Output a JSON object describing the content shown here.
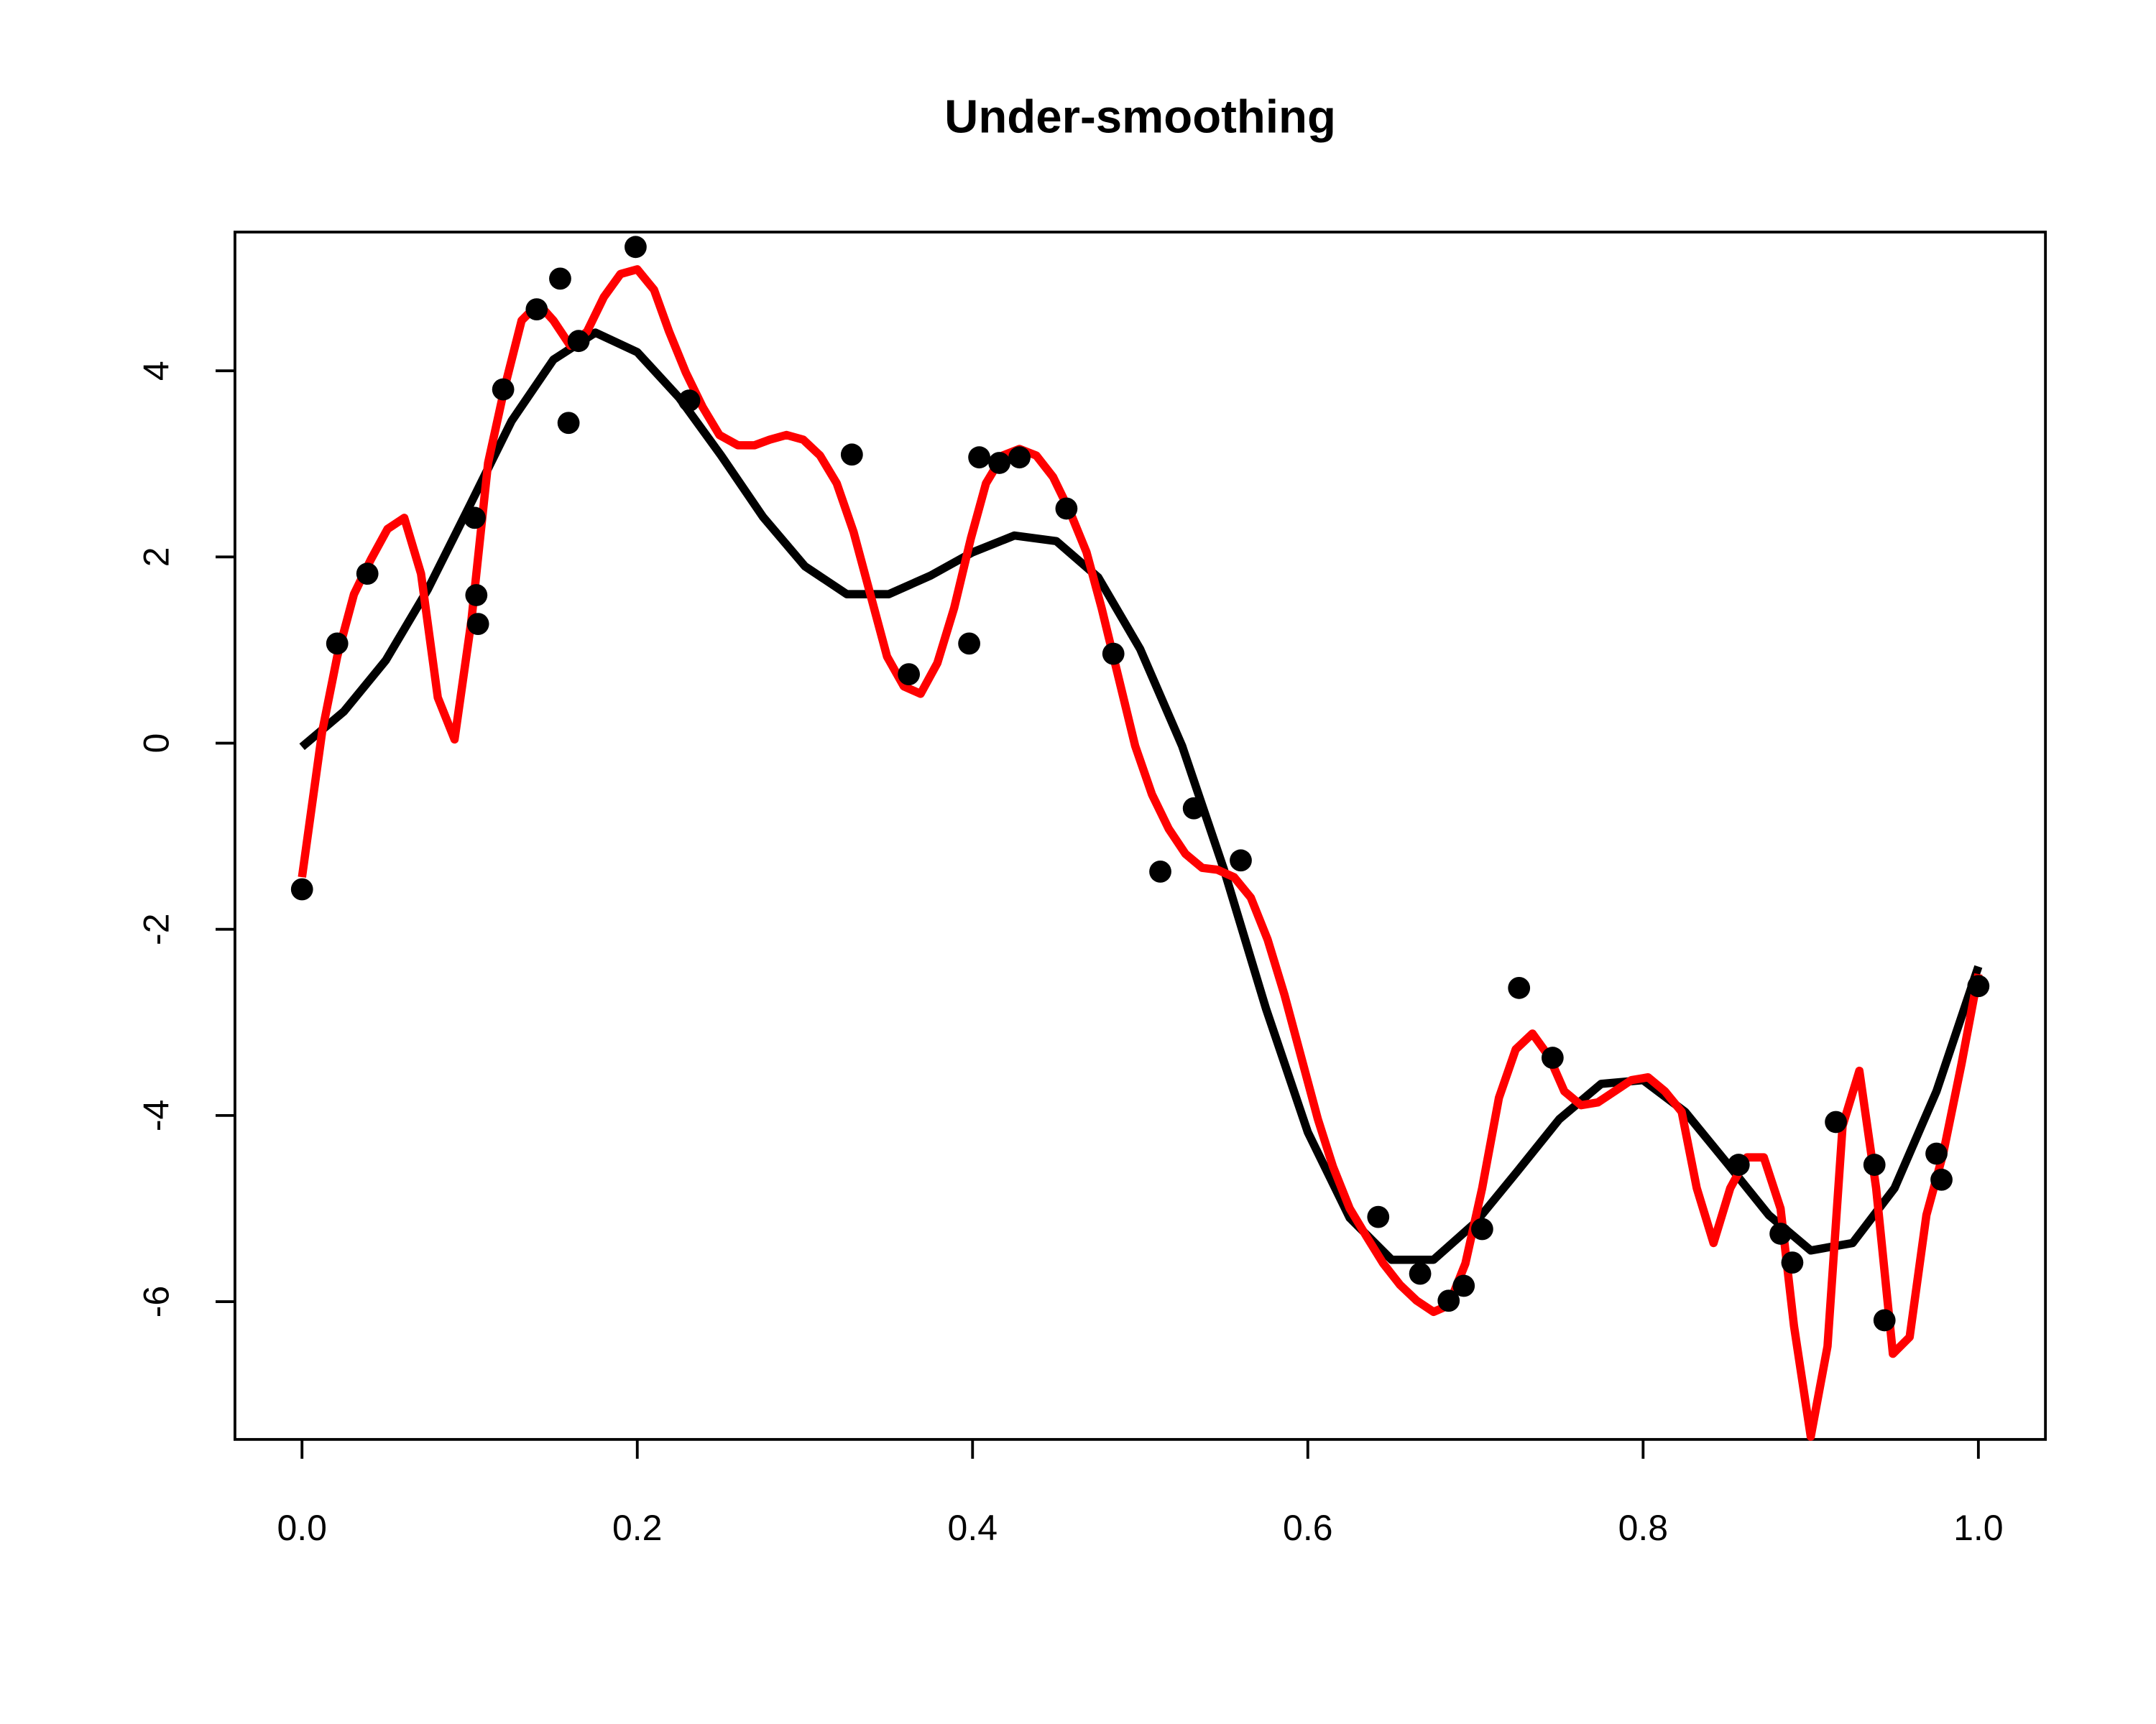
{
  "chart_data": {
    "type": "scatter",
    "title": "Under-smoothing",
    "xlim": [
      -0.04,
      1.04
    ],
    "ylim": [
      -7.48,
      5.49
    ],
    "xticks": [
      {
        "value": 0,
        "label": "0.0"
      },
      {
        "value": 0.2,
        "label": "0.2"
      },
      {
        "value": 0.4,
        "label": "0.4"
      },
      {
        "value": 0.6,
        "label": "0.6"
      },
      {
        "value": 0.8,
        "label": "0.8"
      },
      {
        "value": 1,
        "label": "1.0"
      }
    ],
    "yticks": [
      -6,
      -4,
      -2,
      0,
      2,
      4
    ],
    "series": [
      {
        "style": "points",
        "color": "#000000",
        "x": [
          0,
          0.021,
          0.039,
          0.103,
          0.104,
          0.105,
          0.12,
          0.14,
          0.154,
          0.159,
          0.165,
          0.199,
          0.231,
          0.328,
          0.362,
          0.398,
          0.404,
          0.416,
          0.428,
          0.456,
          0.484,
          0.512,
          0.532,
          0.56,
          0.642,
          0.667,
          0.684,
          0.693,
          0.704,
          0.726,
          0.746,
          0.857,
          0.882,
          0.889,
          0.915,
          0.938,
          0.944,
          0.975,
          0.978,
          1.0
        ],
        "values": [
          -1.57,
          1.07,
          1.82,
          2.42,
          1.59,
          1.28,
          3.8,
          4.66,
          4.99,
          3.44,
          4.32,
          5.33,
          3.68,
          3.1,
          0.74,
          1.07,
          3.07,
          3.01,
          3.07,
          2.52,
          0.96,
          -1.38,
          -0.7,
          -1.26,
          -5.09,
          -5.7,
          -5.99,
          -5.83,
          -5.22,
          -2.63,
          -3.38,
          -4.53,
          -5.27,
          -5.58,
          -4.07,
          -4.53,
          -6.2,
          -4.41,
          -4.69,
          -2.61
        ]
      },
      {
        "style": "line",
        "color": "#000000",
        "x": [
          0,
          0.025,
          0.05,
          0.075,
          0.1,
          0.125,
          0.15,
          0.175,
          0.2,
          0.225,
          0.25,
          0.275,
          0.3,
          0.325,
          0.35,
          0.375,
          0.4,
          0.425,
          0.45,
          0.475,
          0.5,
          0.525,
          0.55,
          0.575,
          0.6,
          0.625,
          0.65,
          0.675,
          0.7,
          0.725,
          0.75,
          0.775,
          0.8,
          0.825,
          0.85,
          0.875,
          0.9,
          0.925,
          0.95,
          0.975,
          1.0
        ],
        "values": [
          -0.04,
          0.34,
          0.89,
          1.65,
          2.55,
          3.46,
          4.12,
          4.41,
          4.2,
          3.71,
          3.09,
          2.43,
          1.9,
          1.6,
          1.6,
          1.8,
          2.05,
          2.23,
          2.17,
          1.78,
          1.01,
          -0.03,
          -1.36,
          -2.85,
          -4.18,
          -5.1,
          -5.55,
          -5.55,
          -5.15,
          -4.6,
          -4.04,
          -3.66,
          -3.62,
          -3.96,
          -4.51,
          -5.07,
          -5.45,
          -5.37,
          -4.78,
          -3.74,
          -2.4
        ]
      },
      {
        "style": "line",
        "color": "#ff0000",
        "x": [
          0,
          0.012,
          0.021,
          0.031,
          0.041,
          0.051,
          0.061,
          0.071,
          0.081,
          0.091,
          0.101,
          0.111,
          0.121,
          0.131,
          0.141,
          0.15,
          0.16,
          0.17,
          0.18,
          0.19,
          0.2,
          0.21,
          0.219,
          0.229,
          0.239,
          0.249,
          0.26,
          0.27,
          0.279,
          0.289,
          0.299,
          0.309,
          0.319,
          0.329,
          0.339,
          0.349,
          0.359,
          0.369,
          0.379,
          0.389,
          0.399,
          0.408,
          0.418,
          0.428,
          0.438,
          0.448,
          0.458,
          0.468,
          0.477,
          0.487,
          0.497,
          0.507,
          0.517,
          0.527,
          0.537,
          0.546,
          0.556,
          0.566,
          0.576,
          0.586,
          0.596,
          0.606,
          0.615,
          0.625,
          0.635,
          0.645,
          0.655,
          0.665,
          0.675,
          0.684,
          0.694,
          0.704,
          0.714,
          0.724,
          0.734,
          0.744,
          0.753,
          0.763,
          0.773,
          0.783,
          0.793,
          0.803,
          0.813,
          0.823,
          0.832,
          0.842,
          0.852,
          0.862,
          0.872,
          0.882,
          0.89,
          0.9,
          0.91,
          0.919,
          0.929,
          0.939,
          0.949,
          0.959,
          0.969,
          0.979,
          0.99,
          1.0
        ],
        "values": [
          -1.44,
          0.12,
          0.93,
          1.6,
          1.97,
          2.3,
          2.42,
          1.82,
          0.49,
          0.04,
          1.31,
          3.01,
          3.83,
          4.54,
          4.72,
          4.54,
          4.27,
          4.42,
          4.79,
          5.04,
          5.09,
          4.87,
          4.42,
          3.98,
          3.61,
          3.31,
          3.2,
          3.2,
          3.26,
          3.31,
          3.26,
          3.09,
          2.79,
          2.27,
          1.6,
          0.93,
          0.61,
          0.53,
          0.86,
          1.45,
          2.2,
          2.79,
          3.09,
          3.16,
          3.09,
          2.86,
          2.49,
          2.05,
          1.45,
          0.71,
          -0.03,
          -0.55,
          -0.92,
          -1.19,
          -1.34,
          -1.36,
          -1.44,
          -1.66,
          -2.11,
          -2.7,
          -3.37,
          -4.04,
          -4.55,
          -5.0,
          -5.3,
          -5.59,
          -5.82,
          -5.99,
          -6.11,
          -6.04,
          -5.59,
          -4.78,
          -3.81,
          -3.29,
          -3.12,
          -3.37,
          -3.74,
          -3.89,
          -3.86,
          -3.74,
          -3.62,
          -3.59,
          -3.74,
          -3.96,
          -4.78,
          -5.37,
          -4.78,
          -4.45,
          -4.45,
          -5.0,
          -6.26,
          -7.45,
          -6.48,
          -4.11,
          -3.52,
          -4.78,
          -6.56,
          -6.38,
          -5.07,
          -4.41,
          -3.44,
          -2.48
        ]
      }
    ]
  }
}
